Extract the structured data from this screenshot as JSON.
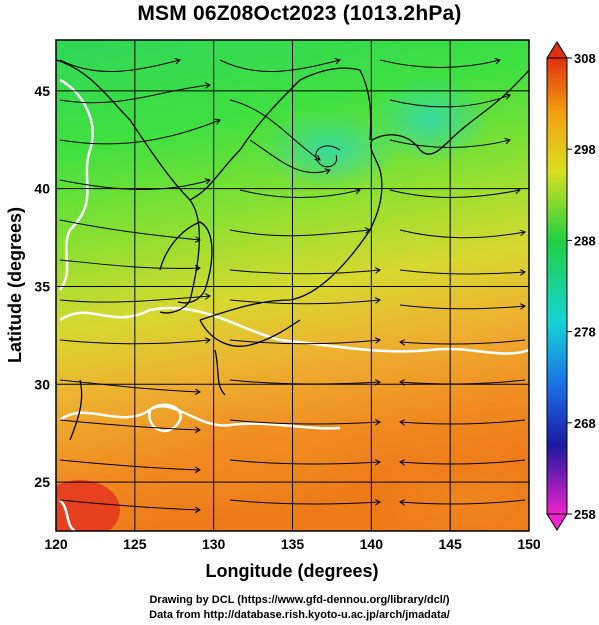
{
  "title": "MSM 06Z08Oct2023 (1013.2hPa)",
  "map": {
    "x_axis": {
      "label": "Longitude (degrees)",
      "range": [
        120,
        150
      ],
      "ticks": [
        "120",
        "125",
        "130",
        "135",
        "140",
        "145",
        "150"
      ]
    },
    "y_axis": {
      "label": "Latitude  (degrees)",
      "range": [
        22.5,
        47.6
      ],
      "ticks": [
        "25",
        "30",
        "35",
        "40",
        "45"
      ]
    },
    "grid": true,
    "overlay": "streamlines"
  },
  "colorbar": {
    "range": [
      258,
      308
    ],
    "ticks": [
      "258",
      "268",
      "278",
      "288",
      "298",
      "308"
    ],
    "colors": [
      "#ee22cc",
      "#1a1aa0",
      "#1b6ee6",
      "#16d3d6",
      "#20d040",
      "#d8e020",
      "#f2a010",
      "#e03010"
    ]
  },
  "credits": {
    "line1": "Drawing by DCL (https://www.gfd-dennou.org/library/dcl/)",
    "line2": "Data from http://database.rish.kyoto-u.ac.jp/arch/jmadata/"
  }
}
